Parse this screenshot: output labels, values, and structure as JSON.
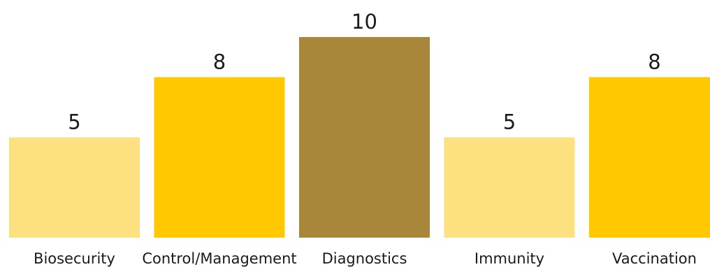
{
  "chart_data": {
    "type": "bar",
    "categories": [
      "Biosecurity",
      "Control/Management",
      "Diagnostics",
      "Immunity",
      "Vaccination"
    ],
    "values": [
      5,
      8,
      10,
      5,
      8
    ],
    "colors": [
      "#FDE080",
      "#FFC800",
      "#A8863A",
      "#FDE080",
      "#FFC800"
    ],
    "ylim": [
      0,
      10
    ],
    "grid": false,
    "legend": "none",
    "data_labels": true
  }
}
